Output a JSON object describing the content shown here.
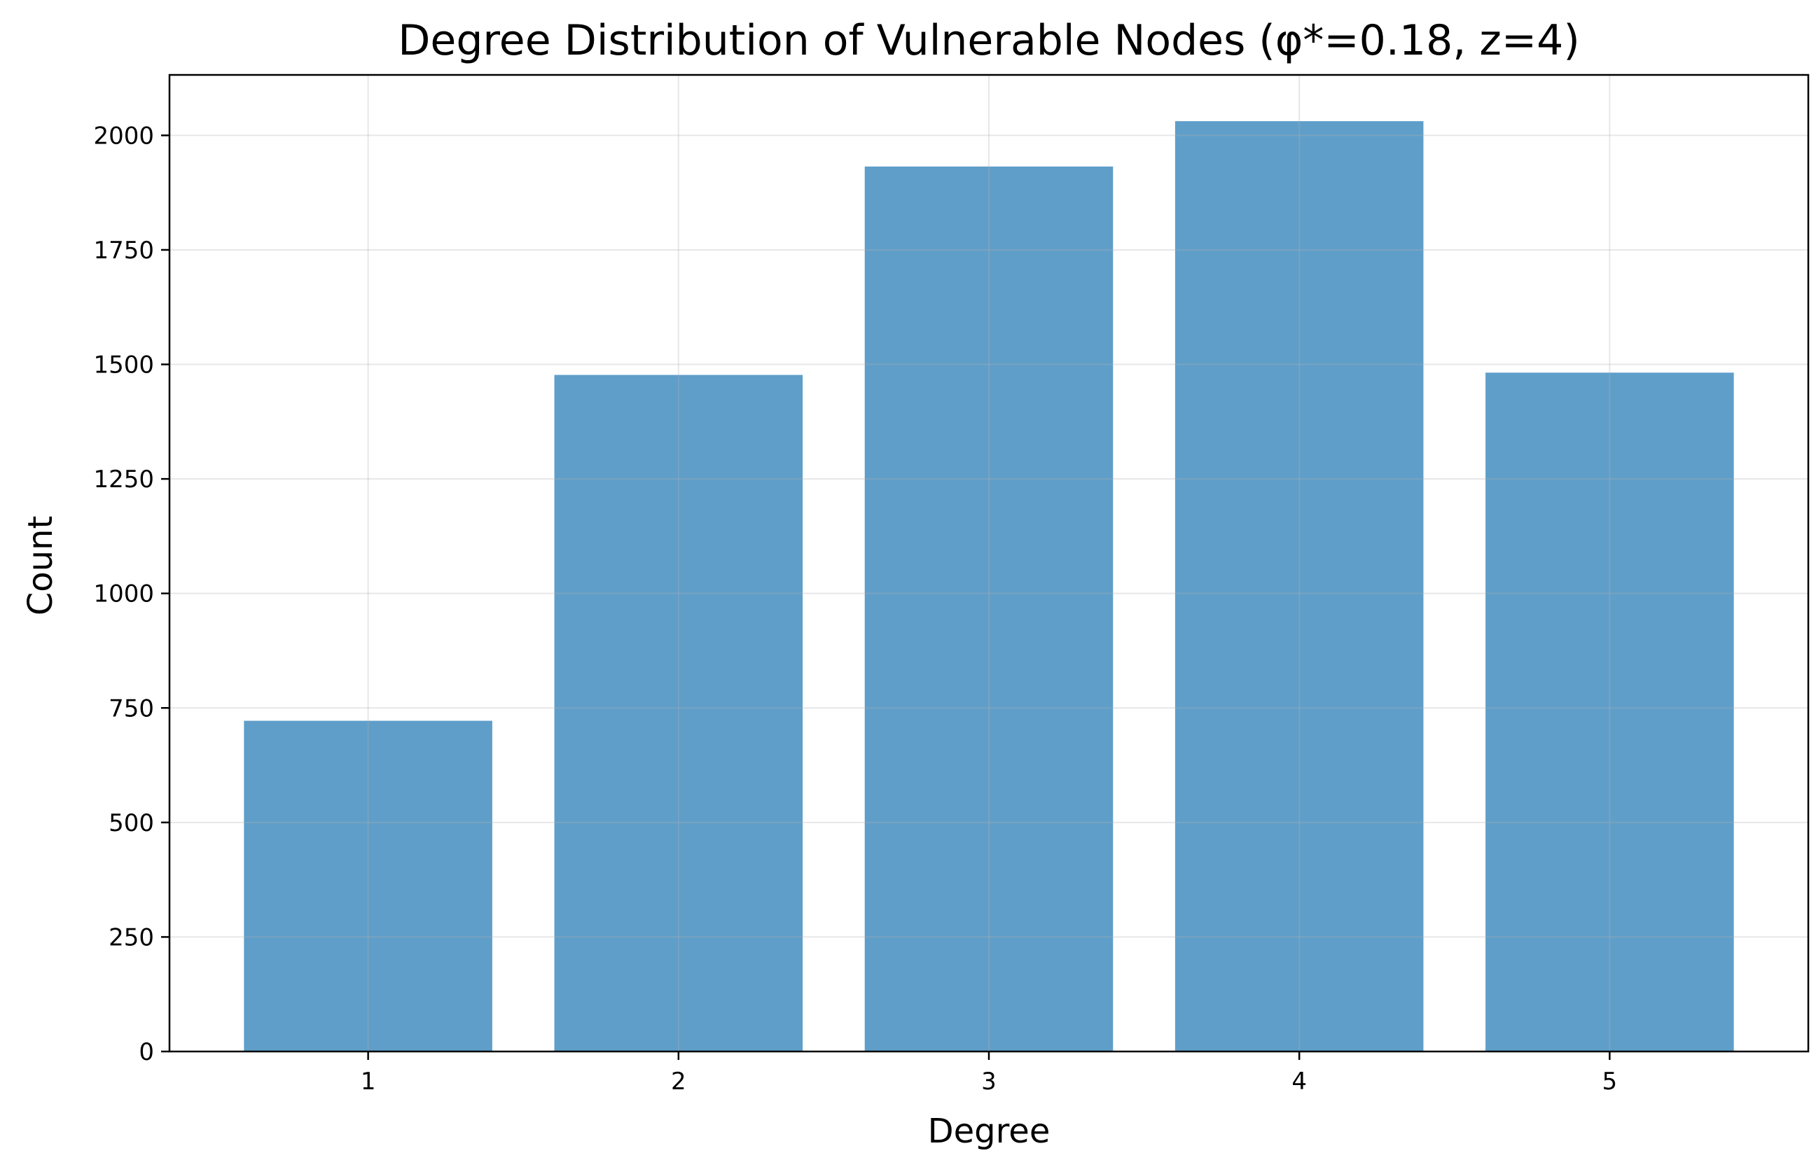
{
  "chart_data": {
    "type": "bar",
    "title": "Degree Distribution of Vulnerable Nodes (φ*=0.18, z=4)",
    "xlabel": "Degree",
    "ylabel": "Count",
    "categories": [
      "1",
      "2",
      "3",
      "4",
      "5"
    ],
    "x": [
      1,
      2,
      3,
      4,
      5
    ],
    "values": [
      722,
      1477,
      1932,
      2031,
      1482
    ],
    "xlim": [
      0.36,
      5.64
    ],
    "ylim": [
      0,
      2132
    ],
    "yticks": [
      0,
      250,
      500,
      750,
      1000,
      1250,
      1500,
      1750,
      2000
    ],
    "ytick_labels": [
      "0",
      "250",
      "500",
      "750",
      "1000",
      "1250",
      "1500",
      "1750",
      "2000"
    ],
    "bar_color": "#5f9ec9",
    "grid": true,
    "legend": "none"
  }
}
